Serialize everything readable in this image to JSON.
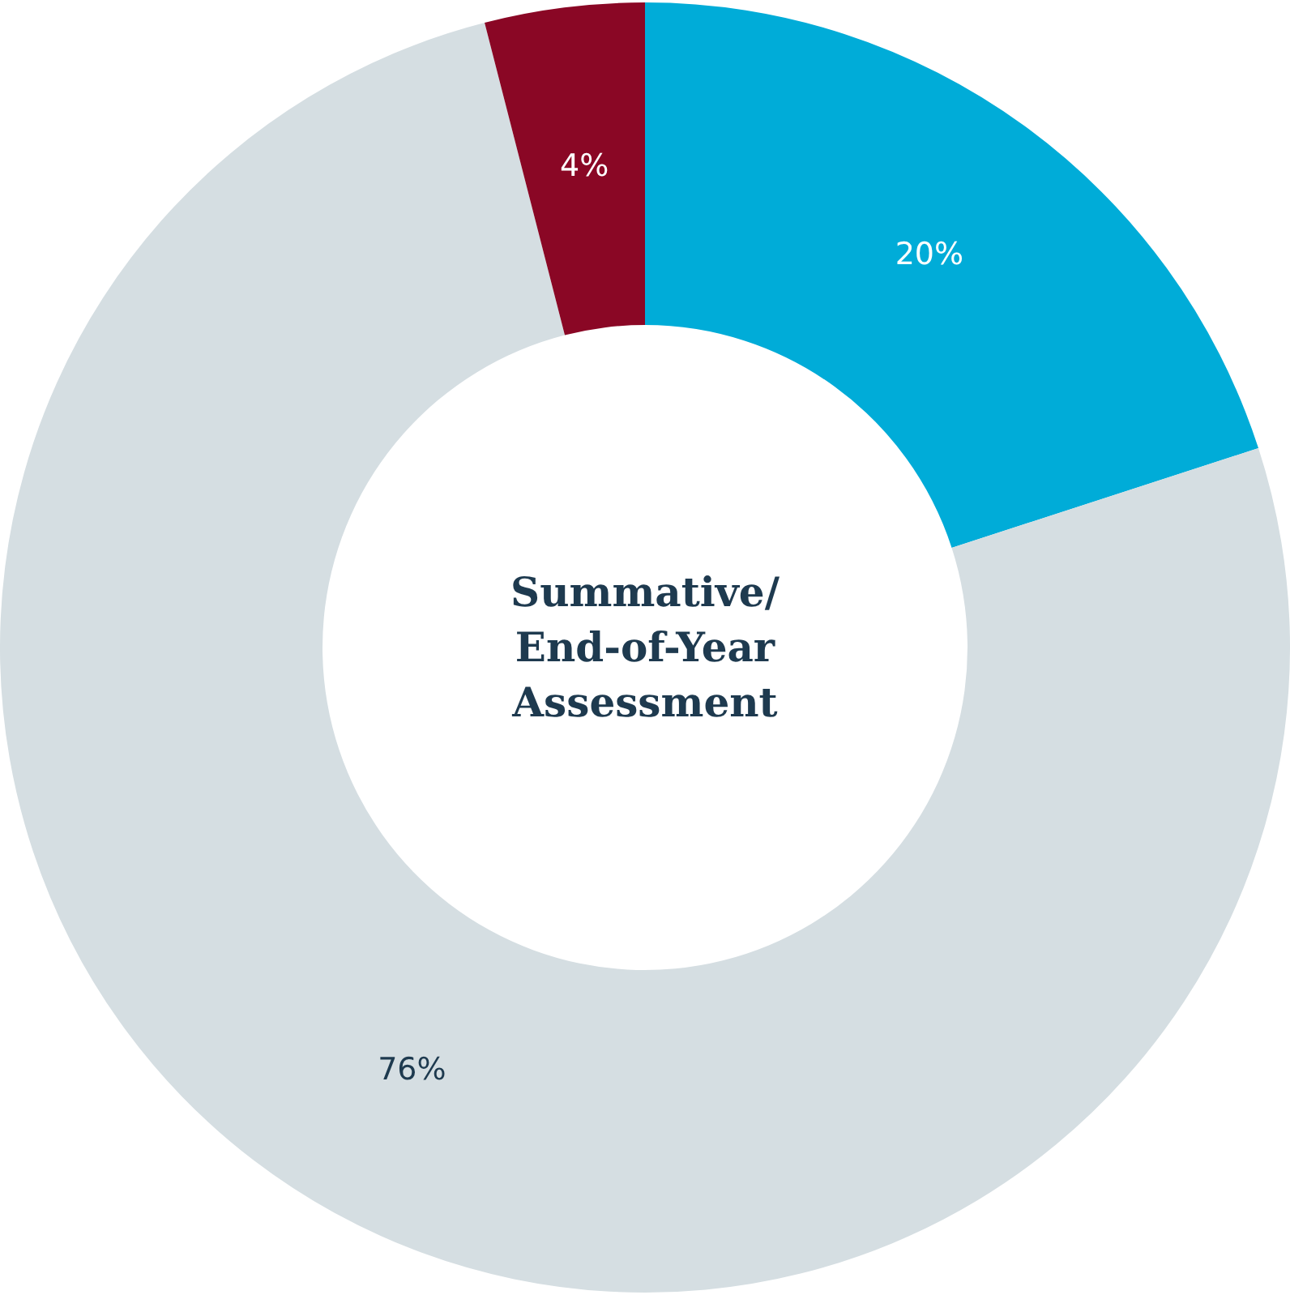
{
  "chart_data": {
    "type": "donut",
    "title": "Summative/ End-of-Year Assessment",
    "categories": [
      null,
      null,
      null
    ],
    "values": [
      20,
      76,
      4
    ],
    "colors": [
      "#00acd8",
      "#d5dee2",
      "#8a0725"
    ],
    "value_labels": [
      "20%",
      "76%",
      "4%"
    ],
    "legend": false
  }
}
